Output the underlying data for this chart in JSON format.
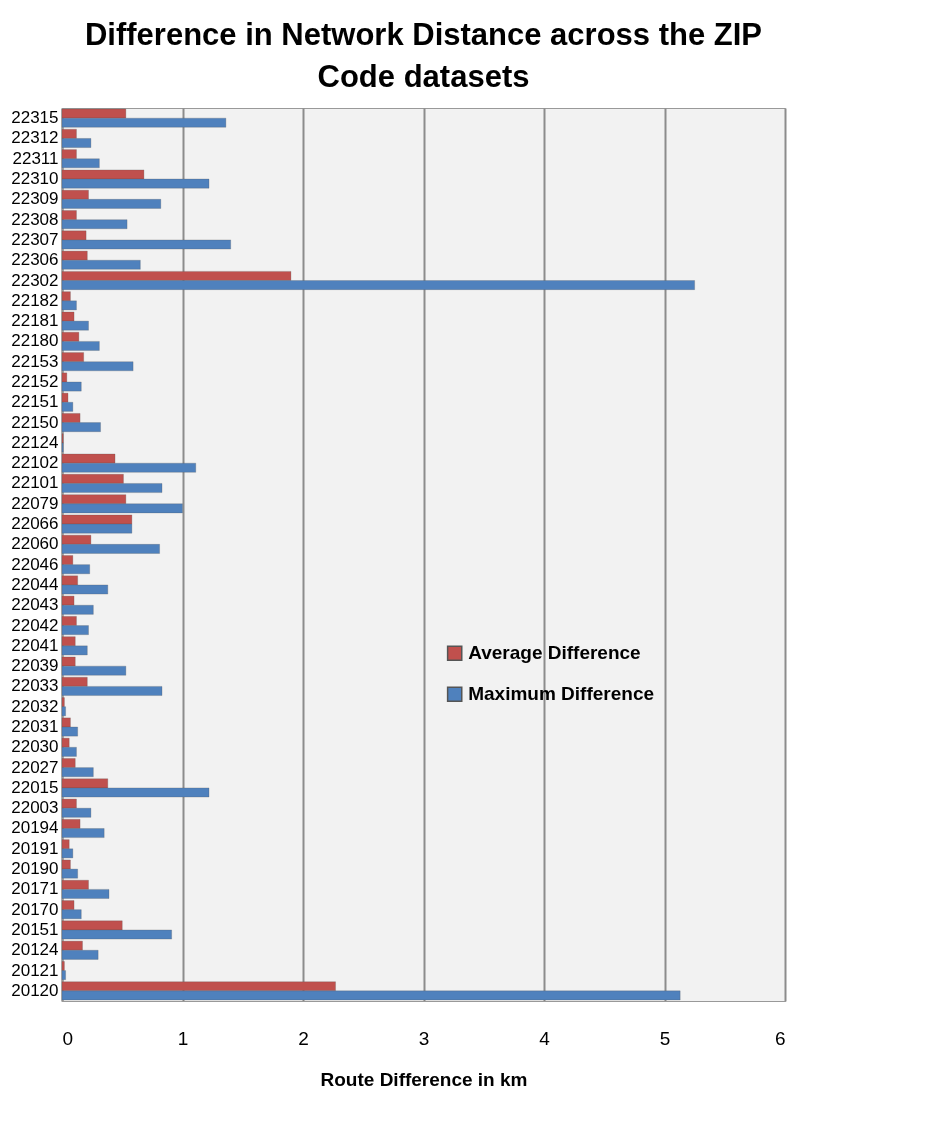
{
  "chart_data": {
    "type": "bar",
    "orientation": "horizontal",
    "title": "Difference in Network Distance across the ZIP Code datasets",
    "xlabel": "Route Difference in km",
    "categories": [
      "22315",
      "22312",
      "22311",
      "22310",
      "22309",
      "22308",
      "22307",
      "22306",
      "22302",
      "22182",
      "22181",
      "22180",
      "22153",
      "22152",
      "22151",
      "22150",
      "22124",
      "22102",
      "22101",
      "22079",
      "22066",
      "22060",
      "22046",
      "22044",
      "22043",
      "22042",
      "22041",
      "22039",
      "22033",
      "22032",
      "22031",
      "22030",
      "22027",
      "22015",
      "22003",
      "20194",
      "20191",
      "20190",
      "20171",
      "20170",
      "20151",
      "20124",
      "20121",
      "20120"
    ],
    "series": [
      {
        "name": "Average Difference",
        "color": "#c0504d",
        "values": [
          0.53,
          0.12,
          0.12,
          0.68,
          0.22,
          0.12,
          0.2,
          0.21,
          1.9,
          0.07,
          0.1,
          0.14,
          0.18,
          0.04,
          0.05,
          0.15,
          0.01,
          0.44,
          0.51,
          0.53,
          0.58,
          0.24,
          0.09,
          0.13,
          0.1,
          0.12,
          0.11,
          0.11,
          0.21,
          0.02,
          0.07,
          0.06,
          0.11,
          0.38,
          0.12,
          0.15,
          0.06,
          0.07,
          0.22,
          0.1,
          0.5,
          0.17,
          0.02,
          2.27
        ]
      },
      {
        "name": "Maximum Difference",
        "color": "#4f81bd",
        "values": [
          1.36,
          0.24,
          0.31,
          1.22,
          0.82,
          0.54,
          1.4,
          0.65,
          5.25,
          0.12,
          0.22,
          0.31,
          0.59,
          0.16,
          0.09,
          0.32,
          0.01,
          1.11,
          0.83,
          1.0,
          0.58,
          0.81,
          0.23,
          0.38,
          0.26,
          0.22,
          0.21,
          0.53,
          0.83,
          0.03,
          0.13,
          0.12,
          0.26,
          1.22,
          0.24,
          0.35,
          0.09,
          0.13,
          0.39,
          0.16,
          0.91,
          0.3,
          0.03,
          5.13
        ]
      }
    ],
    "xlim": [
      0,
      6
    ],
    "xticks": [
      0,
      1,
      2,
      3,
      4,
      5,
      6
    ],
    "grid": "x",
    "legend": "right"
  }
}
